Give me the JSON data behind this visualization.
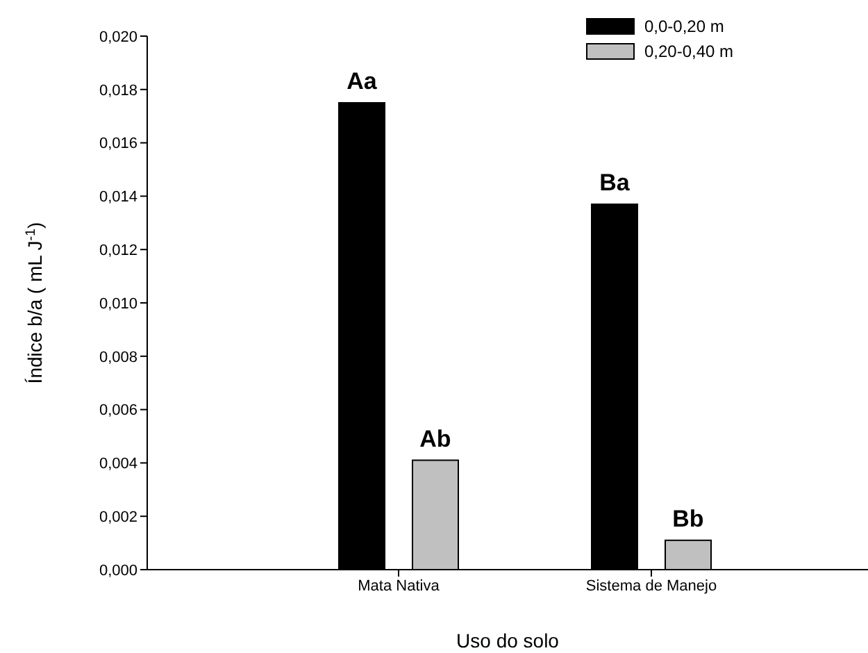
{
  "chart_data": {
    "type": "bar",
    "xlabel": "Uso do solo",
    "ylabel": "Índice b/a ( mL J$^{-1}$)",
    "categories": [
      "Mata Nativa",
      "Sistema de Manejo"
    ],
    "series": [
      {
        "name": "0,0-0,20 m",
        "color": "#000000",
        "values": [
          0.0175,
          0.0137
        ],
        "value_labels": [
          "Aa",
          "Ba"
        ]
      },
      {
        "name": "0,20-0,40 m",
        "color": "#c0c0c0",
        "values": [
          0.0041,
          0.0011
        ],
        "value_labels": [
          "Ab",
          "Bb"
        ]
      }
    ],
    "ylim": [
      0,
      0.02
    ],
    "yticks": [
      {
        "value": 0,
        "label": "0,000"
      },
      {
        "value": 0.002,
        "label": "0,002"
      },
      {
        "value": 0.004,
        "label": "0,004"
      },
      {
        "value": 0.006,
        "label": "0,006"
      },
      {
        "value": 0.008,
        "label": "0,008"
      },
      {
        "value": 0.01,
        "label": "0,010"
      },
      {
        "value": 0.012,
        "label": "0,012"
      },
      {
        "value": 0.014,
        "label": "0,014"
      },
      {
        "value": 0.016,
        "label": "0,016"
      },
      {
        "value": 0.018,
        "label": "0,018"
      },
      {
        "value": 0.02,
        "label": "0,020"
      }
    ],
    "grid": false,
    "legend": "top right"
  }
}
